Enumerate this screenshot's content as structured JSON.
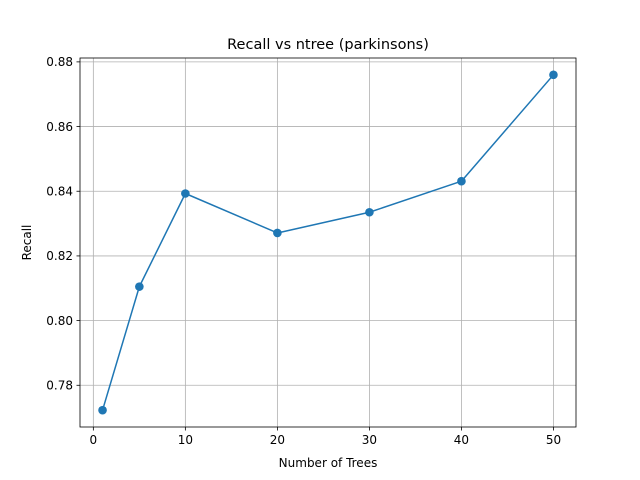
{
  "chart_data": {
    "type": "line",
    "title": "Recall vs ntree (parkinsons)",
    "xlabel": "Number of Trees",
    "ylabel": "Recall",
    "x": [
      1,
      5,
      10,
      20,
      30,
      40,
      50
    ],
    "series": [
      {
        "values": [
          0.7723,
          0.8105,
          0.8393,
          0.8271,
          0.8335,
          0.8431,
          0.876
        ]
      }
    ],
    "xticks": [
      0,
      10,
      20,
      30,
      40,
      50
    ],
    "xtick_labels": [
      "0",
      "10",
      "20",
      "30",
      "40",
      "50"
    ],
    "yticks": [
      0.78,
      0.8,
      0.82,
      0.84,
      0.86,
      0.88
    ],
    "ytick_labels": [
      "0.78",
      "0.80",
      "0.82",
      "0.84",
      "0.86",
      "0.88"
    ],
    "xlim": [
      -1.45,
      52.45
    ],
    "ylim": [
      0.7671,
      0.8812
    ],
    "grid": true,
    "marker": "circle",
    "line_color": "#1f77b4"
  }
}
